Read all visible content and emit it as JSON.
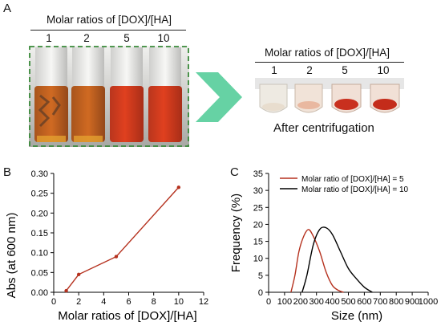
{
  "panel_a": {
    "letter": "A",
    "left_group": {
      "title": "Molar ratios of [DOX]/[HA]",
      "ratios": [
        "1",
        "2",
        "5",
        "10"
      ]
    },
    "right_group": {
      "title": "Molar ratios of [DOX]/[HA]",
      "ratios": [
        "1",
        "2",
        "5",
        "10"
      ],
      "caption": "After centrifugation"
    },
    "colors": {
      "arrow": "#66d2a4",
      "dashed_box": "#3a8a3a",
      "solution": "#d8371d"
    }
  },
  "panel_b": {
    "letter": "B"
  },
  "panel_c": {
    "letter": "C"
  },
  "chart_data": [
    {
      "type": "line",
      "panel": "B",
      "xlabel": "Molar ratios of [DOX]/[HA]",
      "ylabel": "Abs (at 600 nm)",
      "xlim": [
        0,
        12
      ],
      "ylim": [
        0,
        0.3
      ],
      "xticks": [
        "0",
        "2",
        "4",
        "6",
        "8",
        "10",
        "12"
      ],
      "yticks": [
        "0.00",
        "0.05",
        "0.10",
        "0.15",
        "0.20",
        "0.25",
        "0.30"
      ],
      "x": [
        1,
        2,
        5,
        10
      ],
      "y": [
        0.004,
        0.045,
        0.09,
        0.265
      ],
      "color": "#b5311e",
      "grid": false
    },
    {
      "type": "line",
      "panel": "C",
      "xlabel": "Size (nm)",
      "ylabel": "Frequency (%)",
      "xlim": [
        0,
        1000
      ],
      "ylim": [
        0,
        35
      ],
      "xticks": [
        "0",
        "100",
        "200",
        "300",
        "400",
        "500",
        "600",
        "700",
        "800",
        "900",
        "1000"
      ],
      "yticks": [
        "0",
        "5",
        "10",
        "15",
        "20",
        "25",
        "30",
        "35"
      ],
      "legend_position": "top-right",
      "series": [
        {
          "name": "Molar ratio of [DOX]/[HA] = 5",
          "color": "#b5311e",
          "x": [
            140,
            165,
            190,
            220,
            250,
            280,
            320,
            360,
            400,
            440,
            470
          ],
          "y": [
            0,
            5,
            12,
            16.5,
            18.5,
            16.5,
            12,
            6,
            2,
            0.5,
            0
          ]
        },
        {
          "name": "Molar ratio of [DOX]/[HA] = 10",
          "color": "#000000",
          "x": [
            210,
            240,
            280,
            320,
            360,
            400,
            450,
            500,
            550,
            600,
            650
          ],
          "y": [
            0,
            5,
            14,
            18.5,
            19,
            17,
            12,
            7,
            4,
            1.5,
            0
          ]
        }
      ]
    }
  ]
}
